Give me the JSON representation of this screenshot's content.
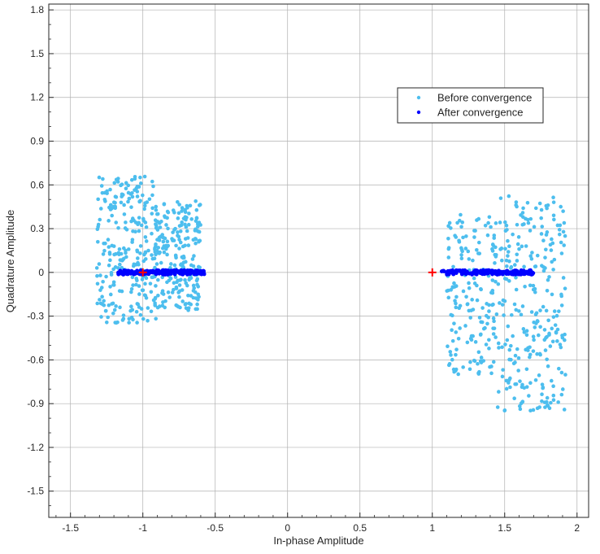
{
  "chart_data": {
    "type": "scatter",
    "title": "",
    "xlabel": "In-phase Amplitude",
    "ylabel": "Quadrature Amplitude",
    "xlim": [
      -1.65,
      2.08
    ],
    "ylim": [
      -1.68,
      1.84
    ],
    "xticks": [
      -1.5,
      -1,
      -0.5,
      0,
      0.5,
      1,
      1.5,
      2
    ],
    "yticks": [
      -1.5,
      -1.2,
      -0.9,
      -0.6,
      -0.3,
      0,
      0.3,
      0.6,
      0.9,
      1.2,
      1.5,
      1.8
    ],
    "grid": true,
    "legend": "top-right",
    "series": [
      {
        "name": "Before convergence",
        "color": "#4dbeee",
        "clusters": [
          {
            "x_range": [
              -1.32,
              -0.9
            ],
            "y_range": [
              -0.35,
              0.66
            ],
            "count": 260
          },
          {
            "x_range": [
              -0.92,
              -0.6
            ],
            "y_range": [
              -0.26,
              0.49
            ],
            "count": 230
          },
          {
            "x_range": [
              1.1,
              1.45
            ],
            "y_range": [
              -0.7,
              0.4
            ],
            "count": 170
          },
          {
            "x_range": [
              1.45,
              1.92
            ],
            "y_range": [
              -0.95,
              0.53
            ],
            "count": 260
          }
        ]
      },
      {
        "name": "After convergence",
        "color": "#0000ff",
        "clusters": [
          {
            "x_range": [
              -1.17,
              -0.57
            ],
            "y_range": [
              -0.015,
              0.015
            ],
            "count": 180
          },
          {
            "x_range": [
              1.06,
              1.7
            ],
            "y_range": [
              -0.015,
              0.015
            ],
            "count": 180
          }
        ]
      },
      {
        "name": "",
        "color": "#ff0000",
        "marker": "plus",
        "x": [
          -1,
          1
        ],
        "y": [
          0,
          0
        ]
      }
    ]
  }
}
